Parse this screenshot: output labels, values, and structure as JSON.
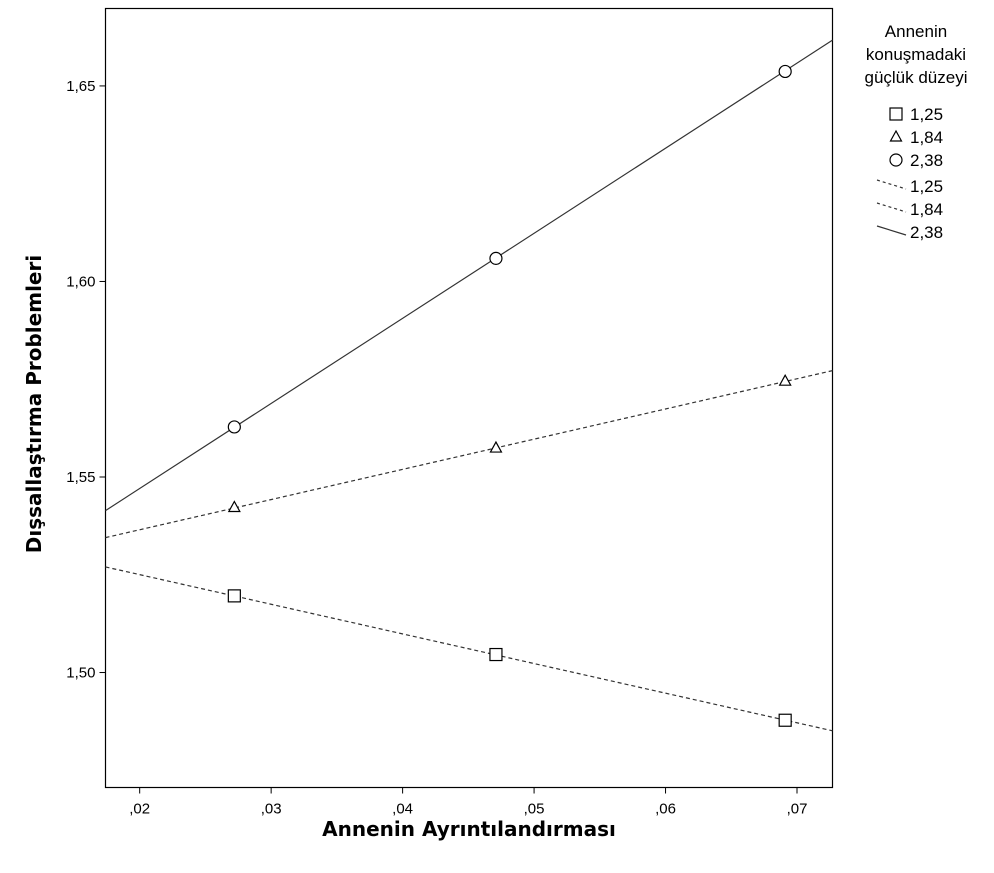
{
  "chart_data": {
    "type": "line",
    "xlabel": "Annenin Ayrıntılandırması",
    "ylabel": "Dışsallaştırma Problemleri",
    "xlim": [
      0.0174,
      0.0727
    ],
    "ylim": [
      1.4706,
      1.6698
    ],
    "xticks": [
      {
        "value": 0.02,
        "label": ",02"
      },
      {
        "value": 0.03,
        "label": ",03"
      },
      {
        "value": 0.04,
        "label": ",04"
      },
      {
        "value": 0.05,
        "label": ",05"
      },
      {
        "value": 0.06,
        "label": ",06"
      },
      {
        "value": 0.07,
        "label": ",07"
      }
    ],
    "yticks": [
      {
        "value": 1.5,
        "label": "1,50"
      },
      {
        "value": 1.55,
        "label": "1,55"
      },
      {
        "value": 1.6,
        "label": "1,60"
      },
      {
        "value": 1.65,
        "label": "1,65"
      }
    ],
    "grid": false,
    "legend": {
      "title": [
        "Annenin",
        "konuşmadaki",
        "güçlük düzeyi"
      ],
      "placement": "right"
    },
    "series": [
      {
        "name": "1,25",
        "marker": "square",
        "line_style": "dashed",
        "points": [
          {
            "x": 0.0272,
            "y": 1.5196
          },
          {
            "x": 0.0471,
            "y": 1.5046
          },
          {
            "x": 0.0691,
            "y": 1.4878
          }
        ],
        "fit_line": [
          {
            "x": 0.0174,
            "y": 1.527
          },
          {
            "x": 0.0727,
            "y": 1.4851
          }
        ]
      },
      {
        "name": "1,84",
        "marker": "triangle",
        "line_style": "dashed",
        "points": [
          {
            "x": 0.0272,
            "y": 1.5422
          },
          {
            "x": 0.0471,
            "y": 1.5574
          },
          {
            "x": 0.0691,
            "y": 1.5745
          }
        ],
        "fit_line": [
          {
            "x": 0.0174,
            "y": 1.5345
          },
          {
            "x": 0.0727,
            "y": 1.5772
          }
        ]
      },
      {
        "name": "2,38",
        "marker": "circle",
        "line_style": "solid",
        "points": [
          {
            "x": 0.0272,
            "y": 1.5628
          },
          {
            "x": 0.0471,
            "y": 1.6059
          },
          {
            "x": 0.0691,
            "y": 1.6537
          }
        ],
        "fit_line": [
          {
            "x": 0.0174,
            "y": 1.5414
          },
          {
            "x": 0.0727,
            "y": 1.6617
          }
        ]
      }
    ]
  }
}
